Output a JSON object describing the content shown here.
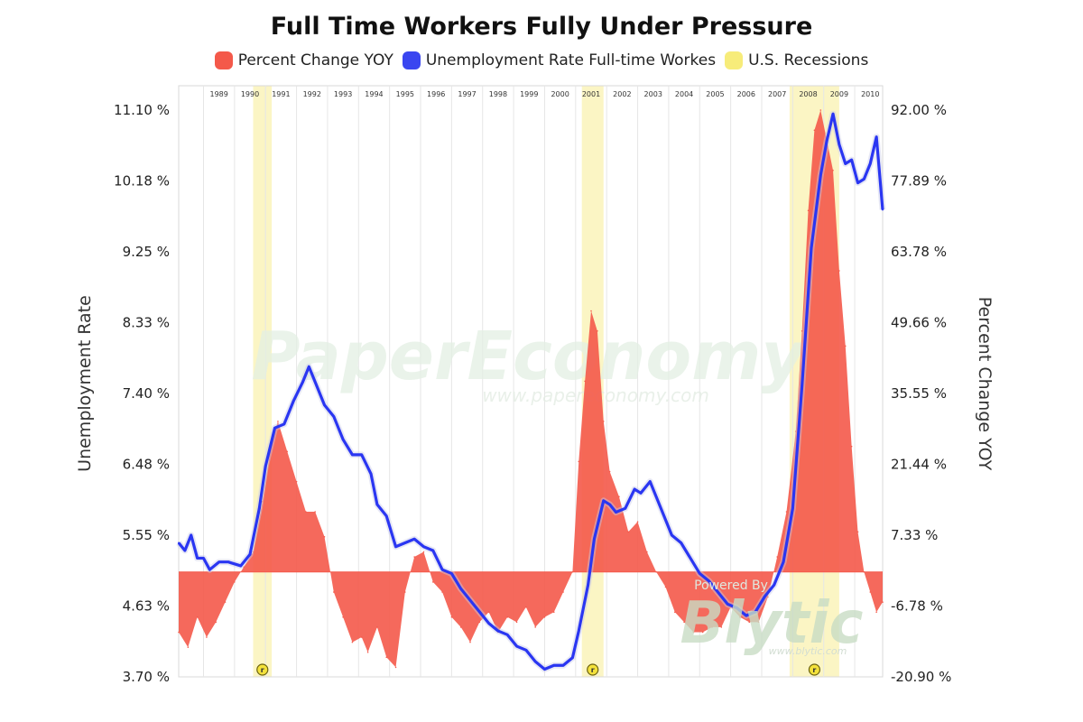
{
  "chart_data": {
    "type": "line",
    "title": "Full Time Workers Fully Under Pressure",
    "legend": [
      {
        "label": "Percent Change YOY",
        "color": "#f4594a"
      },
      {
        "label": "Unemployment Rate Full-time Workes",
        "color": "#3a46f0"
      },
      {
        "label": "U.S. Recessions",
        "color": "#f7ec7a"
      }
    ],
    "ylabel_left": "Unemployment Rate",
    "ylabel_right": "Percent Change YOY",
    "yticks_left": [
      "11.10 %",
      "10.18 %",
      "9.25 %",
      "8.33 %",
      "7.40 %",
      "6.48 %",
      "5.55 %",
      "4.63 %",
      "3.70 %"
    ],
    "yticks_right": [
      "92.00 %",
      "77.89 %",
      "63.78 %",
      "49.66 %",
      "35.55 %",
      "21.44 %",
      "7.33 %",
      "-6.78 %",
      "-20.90 %"
    ],
    "ylim_left": [
      3.7,
      11.1
    ],
    "ylim_right": [
      -20.9,
      92.0
    ],
    "xlim": [
      1988.2,
      2010.9
    ],
    "years": [
      "1989",
      "1990",
      "1991",
      "1992",
      "1993",
      "1994",
      "1995",
      "1996",
      "1997",
      "1998",
      "1999",
      "2000",
      "2001",
      "2002",
      "2003",
      "2004",
      "2005",
      "2006",
      "2007",
      "2008",
      "2009",
      "2010"
    ],
    "recessions": [
      [
        1990.6,
        1991.2
      ],
      [
        2001.2,
        2001.9
      ],
      [
        2007.9,
        2009.5
      ]
    ],
    "recession_marker": "r",
    "series": [
      {
        "name": "Unemployment Rate Full-time Workes",
        "axis": "left",
        "x": [
          1988.2,
          1988.4,
          1988.6,
          1988.8,
          1989.0,
          1989.2,
          1989.5,
          1989.8,
          1990.2,
          1990.5,
          1990.8,
          1991.0,
          1991.3,
          1991.6,
          1991.9,
          1992.2,
          1992.4,
          1992.6,
          1992.9,
          1993.2,
          1993.5,
          1993.8,
          1994.1,
          1994.4,
          1994.6,
          1994.9,
          1995.2,
          1995.5,
          1995.8,
          1996.1,
          1996.4,
          1996.7,
          1997.0,
          1997.3,
          1997.6,
          1997.9,
          1998.2,
          1998.5,
          1998.8,
          1999.1,
          1999.4,
          1999.7,
          2000.0,
          2000.3,
          2000.6,
          2000.9,
          2001.1,
          2001.4,
          2001.6,
          2001.9,
          2002.1,
          2002.3,
          2002.6,
          2002.9,
          2003.1,
          2003.4,
          2003.6,
          2003.9,
          2004.1,
          2004.4,
          2004.7,
          2005.0,
          2005.3,
          2005.6,
          2005.9,
          2006.2,
          2006.5,
          2006.8,
          2007.1,
          2007.4,
          2007.7,
          2008.0,
          2008.3,
          2008.6,
          2008.9,
          2009.1,
          2009.3,
          2009.5,
          2009.7,
          2009.9,
          2010.1,
          2010.3,
          2010.5,
          2010.7,
          2010.9
        ],
        "y": [
          5.45,
          5.35,
          5.55,
          5.25,
          5.25,
          5.1,
          5.2,
          5.2,
          5.15,
          5.3,
          5.9,
          6.45,
          6.95,
          7.0,
          7.3,
          7.55,
          7.75,
          7.55,
          7.25,
          7.1,
          6.8,
          6.6,
          6.6,
          6.35,
          5.95,
          5.8,
          5.4,
          5.45,
          5.5,
          5.4,
          5.35,
          5.1,
          5.05,
          4.85,
          4.7,
          4.55,
          4.4,
          4.3,
          4.25,
          4.1,
          4.05,
          3.9,
          3.8,
          3.85,
          3.85,
          3.95,
          4.3,
          4.9,
          5.5,
          6.0,
          5.95,
          5.85,
          5.9,
          6.15,
          6.1,
          6.25,
          6.05,
          5.75,
          5.55,
          5.45,
          5.25,
          5.05,
          4.95,
          4.8,
          4.65,
          4.6,
          4.5,
          4.55,
          4.75,
          4.9,
          5.2,
          5.9,
          7.5,
          9.3,
          10.25,
          10.7,
          11.05,
          10.65,
          10.4,
          10.45,
          10.15,
          10.2,
          10.4,
          10.75,
          9.8
        ]
      },
      {
        "name": "Percent Change YOY",
        "axis": "right",
        "x": [
          1988.2,
          1988.5,
          1988.8,
          1989.1,
          1989.4,
          1989.7,
          1990.0,
          1990.3,
          1990.6,
          1990.9,
          1991.2,
          1991.4,
          1991.7,
          1992.0,
          1992.3,
          1992.6,
          1992.9,
          1993.2,
          1993.5,
          1993.8,
          1994.1,
          1994.3,
          1994.6,
          1994.9,
          1995.2,
          1995.5,
          1995.8,
          1996.1,
          1996.4,
          1996.7,
          1997.0,
          1997.3,
          1997.6,
          1997.9,
          1998.2,
          1998.5,
          1998.8,
          1999.1,
          1999.4,
          1999.7,
          2000.0,
          2000.3,
          2000.6,
          2000.9,
          2001.1,
          2001.3,
          2001.5,
          2001.7,
          2001.9,
          2002.1,
          2002.4,
          2002.7,
          2003.0,
          2003.3,
          2003.6,
          2003.9,
          2004.2,
          2004.5,
          2004.8,
          2005.1,
          2005.4,
          2005.7,
          2006.0,
          2006.3,
          2006.6,
          2006.9,
          2007.2,
          2007.5,
          2007.8,
          2008.1,
          2008.3,
          2008.5,
          2008.7,
          2008.9,
          2009.1,
          2009.3,
          2009.5,
          2009.7,
          2009.9,
          2010.1,
          2010.3,
          2010.5,
          2010.7,
          2010.9
        ],
        "y": [
          -12,
          -15,
          -9,
          -13,
          -10,
          -6,
          -2,
          1,
          4,
          14,
          26,
          30,
          24,
          18,
          12,
          12,
          7,
          -4,
          -9,
          -14,
          -13,
          -16,
          -11,
          -17,
          -19,
          -4,
          3,
          4,
          -2,
          -4,
          -9,
          -11,
          -14,
          -10,
          -8,
          -12,
          -9,
          -10,
          -7,
          -11,
          -9,
          -8,
          -4,
          0,
          22,
          38,
          52,
          48,
          30,
          20,
          15,
          8,
          10,
          4,
          0,
          -3,
          -8,
          -10,
          -12,
          -12,
          -11,
          -11,
          -7,
          -9,
          -10,
          -10,
          -5,
          3,
          12,
          28,
          48,
          72,
          88,
          92,
          86,
          80,
          60,
          45,
          25,
          8,
          0,
          -4,
          -8,
          -6
        ]
      }
    ],
    "watermark": {
      "main": "PaperEconomy",
      "url": "www.papereconomy.com",
      "powered": "Powered By",
      "brand": "Blytic",
      "brand_url": "www.blytic.com"
    }
  }
}
